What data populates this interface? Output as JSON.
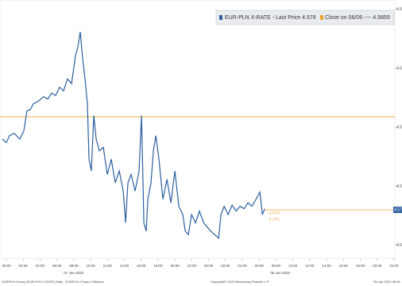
{
  "chart_data": {
    "type": "line",
    "series": [
      {
        "name": "EUR-PLN X-RATE - Last Price 4.578",
        "color": "#2a5fa0",
        "x": [
          -0.47,
          0,
          0.38,
          0.94,
          1.6,
          2.08,
          2.45,
          2.83,
          3.21,
          3.77,
          4.43,
          4.91,
          5.38,
          5.85,
          6.32,
          6.79,
          7.26,
          7.74,
          8.21,
          8.49,
          8.77,
          9.06,
          9.34,
          9.62,
          9.81,
          10.09,
          10.38,
          10.66,
          11.04,
          11.51,
          11.98,
          12.45,
          12.92,
          13.4,
          13.87,
          14.15,
          14.43,
          14.81,
          15.28,
          15.75,
          16.04,
          16.32,
          16.6,
          16.79,
          17.17,
          17.45,
          17.74,
          18.11,
          18.58,
          19.06,
          19.53,
          20,
          20.47,
          20.94,
          21.23,
          21.6,
          21.98,
          22.45,
          22.92,
          23.4,
          23.77,
          24.25,
          24.72,
          25.19,
          25.47,
          25.85,
          26.32,
          26.79,
          27.26,
          27.74,
          28.21,
          28.68,
          29.15,
          29.62,
          30.09,
          30.38,
          30.66
        ],
        "values": [
          4.584,
          4.5837,
          4.5843,
          4.5845,
          4.584,
          4.5847,
          4.5864,
          4.5865,
          4.587,
          4.5872,
          4.5876,
          4.5874,
          4.5879,
          4.5877,
          4.5884,
          4.5881,
          4.5891,
          4.5887,
          4.5911,
          4.5918,
          4.5931,
          4.5908,
          4.5891,
          4.587,
          4.5823,
          4.5813,
          4.586,
          4.584,
          4.583,
          4.5833,
          4.581,
          4.5823,
          4.5803,
          4.5813,
          4.5796,
          4.5769,
          4.5803,
          4.581,
          4.5796,
          4.5813,
          4.586,
          4.5769,
          4.5762,
          4.5789,
          4.5803,
          4.583,
          4.5843,
          4.5823,
          4.5789,
          4.5806,
          4.5786,
          4.5813,
          4.5783,
          4.5776,
          4.5762,
          4.5759,
          4.5776,
          4.5769,
          4.5779,
          4.5769,
          4.5766,
          4.5762,
          4.5759,
          4.5756,
          4.5776,
          4.5783,
          4.5776,
          4.5784,
          4.5779,
          4.5783,
          4.5781,
          4.5786,
          4.5783,
          4.5789,
          4.5795,
          4.5776,
          4.5781
        ]
      }
    ],
    "reference": {
      "name": "Close on 06/06 ---- 4.5859",
      "value": 4.5859,
      "color": "#f0a030"
    },
    "last_price": {
      "value": 4.578,
      "label": "4.578",
      "color": "#2a5fa0"
    },
    "change_labels": [
      "-0.0079",
      "-0.17%"
    ],
    "xlim": [
      -0.75,
      46.1
    ],
    "xticks": [
      {
        "value": 0,
        "label": "00:00"
      },
      {
        "value": 2,
        "label": "02:00"
      },
      {
        "value": 4,
        "label": "04:00"
      },
      {
        "value": 6,
        "label": "06:00"
      },
      {
        "value": 8,
        "label": "08:00"
      },
      {
        "value": 10,
        "label": "10:00"
      },
      {
        "value": 12,
        "label": "12:00"
      },
      {
        "value": 14,
        "label": "14:00"
      },
      {
        "value": 16,
        "label": "16:00"
      },
      {
        "value": 18,
        "label": "18:00"
      },
      {
        "value": 20,
        "label": "20:00"
      },
      {
        "value": 22,
        "label": "22:00"
      },
      {
        "value": 24,
        "label": "00:00"
      },
      {
        "value": 26,
        "label": "02:00"
      },
      {
        "value": 28,
        "label": "04:00"
      },
      {
        "value": 30,
        "label": "06:00"
      },
      {
        "value": 32,
        "label": "08:00"
      },
      {
        "value": 34,
        "label": "10:00"
      },
      {
        "value": 36,
        "label": "12:00"
      },
      {
        "value": 38,
        "label": "14:00"
      },
      {
        "value": 40,
        "label": "16:00"
      },
      {
        "value": 42,
        "label": "18:00"
      },
      {
        "value": 44,
        "label": "20:00"
      },
      {
        "value": 46,
        "label": "22:00"
      }
    ],
    "date_labels": [
      {
        "value": 8,
        "label": "07 Jun 2022"
      },
      {
        "value": 32.5,
        "label": "08 Jun 2022"
      }
    ],
    "ylim": [
      4.5739,
      4.5958
    ],
    "yticks": [
      4.575,
      4.58,
      4.585,
      4.59,
      4.595
    ],
    "footer": [
      "EURPLN Curncy (EUR-PLN X-RATE) Daily - EURPLN 2 Days 2 Minutes",
      "Copyright© 2022 Bloomberg Finance L.P.",
      "08-Jun-2022 09:28"
    ]
  }
}
